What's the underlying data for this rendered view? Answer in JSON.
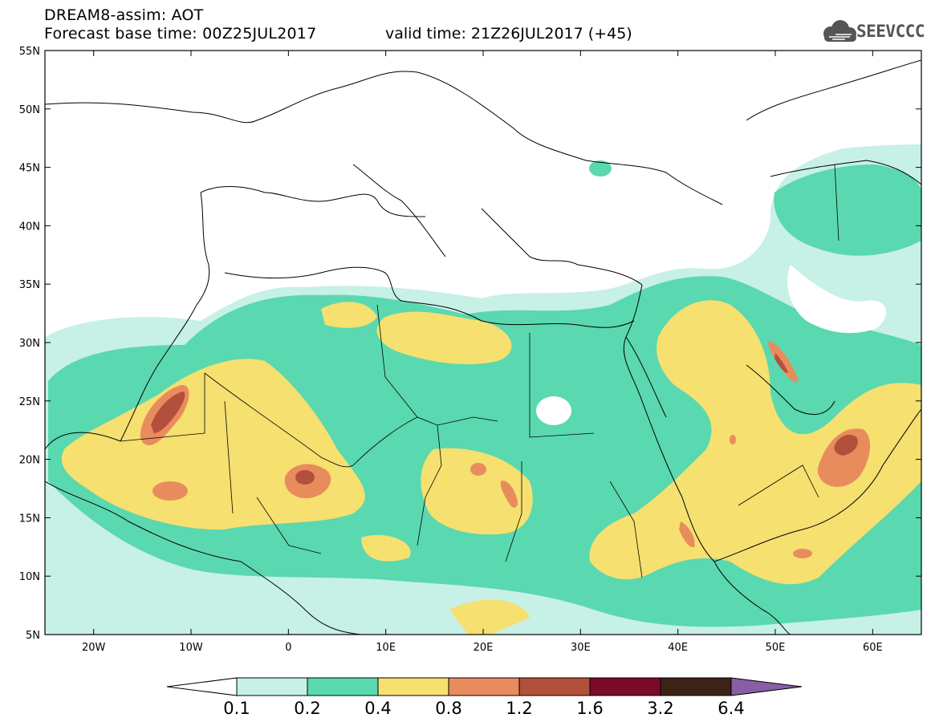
{
  "header": {
    "title": "DREAM8-assim: AOT",
    "base_time": "Forecast base time: 00Z25JUL2017",
    "valid_time": "valid time: 21Z26JUL2017 (+45)"
  },
  "logo": {
    "text": "SEEVCCC",
    "icon": "cloud-icon"
  },
  "map": {
    "lon_range": [
      -25,
      65
    ],
    "lat_range": [
      5,
      55
    ],
    "lon_ticks": [
      {
        "value": -20,
        "label": "20W"
      },
      {
        "value": -10,
        "label": "10W"
      },
      {
        "value": 0,
        "label": "0"
      },
      {
        "value": 10,
        "label": "10E"
      },
      {
        "value": 20,
        "label": "20E"
      },
      {
        "value": 30,
        "label": "30E"
      },
      {
        "value": 40,
        "label": "40E"
      },
      {
        "value": 50,
        "label": "50E"
      },
      {
        "value": 60,
        "label": "60E"
      }
    ],
    "lat_ticks": [
      {
        "value": 5,
        "label": "5N"
      },
      {
        "value": 10,
        "label": "10N"
      },
      {
        "value": 15,
        "label": "15N"
      },
      {
        "value": 20,
        "label": "20N"
      },
      {
        "value": 25,
        "label": "25N"
      },
      {
        "value": 30,
        "label": "30N"
      },
      {
        "value": 35,
        "label": "35N"
      },
      {
        "value": 40,
        "label": "40N"
      },
      {
        "value": 45,
        "label": "45N"
      },
      {
        "value": 50,
        "label": "50N"
      },
      {
        "value": 55,
        "label": "55N"
      }
    ]
  },
  "colorbar": {
    "colors": [
      "#c7f0e6",
      "#5ad8b0",
      "#f5e070",
      "#e98c5d",
      "#b2503c",
      "#7c0a2a",
      "#3b2415",
      "#8a5ea6"
    ],
    "labels": [
      "0.1",
      "0.2",
      "0.4",
      "0.8",
      "1.2",
      "1.6",
      "3.2",
      "6.4"
    ],
    "background": "#ffffff"
  }
}
